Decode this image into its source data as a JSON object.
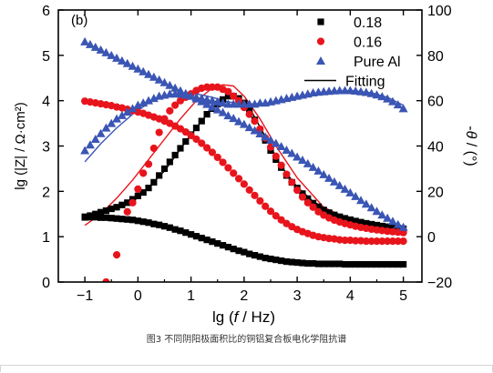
{
  "caption": "图3   不同阴阳极面积比的铜铝复合板电化学阻抗谱",
  "chart_data": {
    "type": "scatter",
    "panel_label": "(b)",
    "xlabel_parts": [
      "lg (",
      "f",
      " / Hz)"
    ],
    "ylabel_left": "lg (|Z| / Ω·cm²)",
    "ylabel_right_parts": [
      "-",
      "θ",
      " / (°)"
    ],
    "xlim": [
      -1.5,
      5.35
    ],
    "ylim_left": [
      0,
      6
    ],
    "ylim_right": [
      -20,
      100
    ],
    "xticks": [
      -1,
      0,
      1,
      2,
      3,
      4,
      5
    ],
    "yticks_left": [
      0,
      1,
      2,
      3,
      4,
      5,
      6
    ],
    "yticks_right": [
      -20,
      0,
      20,
      40,
      60,
      80,
      100
    ],
    "legend_position": "top-right",
    "legend": [
      {
        "label": "0.18",
        "marker": "square",
        "color": "#000000"
      },
      {
        "label": "0.16",
        "marker": "circle",
        "color": "#e8141c"
      },
      {
        "label": "Pure Al",
        "marker": "triangle",
        "color": "#3a55b4"
      },
      {
        "label": "Fitting",
        "marker": "line",
        "color": "#000000"
      }
    ],
    "series": [
      {
        "name": "0.18",
        "quantity": "lg|Z|",
        "axis": "left",
        "marker": "square",
        "color": "#000000",
        "x": [
          -1,
          -0.9,
          -0.8,
          -0.7,
          -0.6,
          -0.5,
          -0.4,
          -0.3,
          -0.2,
          -0.1,
          0,
          0.1,
          0.2,
          0.3,
          0.4,
          0.5,
          0.6,
          0.7,
          0.8,
          0.9,
          1,
          1.1,
          1.2,
          1.3,
          1.4,
          1.5,
          1.6,
          1.7,
          1.8,
          1.9,
          2,
          2.1,
          2.2,
          2.3,
          2.4,
          2.5,
          2.6,
          2.7,
          2.8,
          2.9,
          3,
          3.1,
          3.2,
          3.3,
          3.4,
          3.5,
          3.6,
          3.7,
          3.8,
          3.9,
          4,
          4.1,
          4.2,
          4.3,
          4.4,
          4.5,
          4.6,
          4.7,
          4.8,
          4.9,
          5
        ],
        "y": [
          1.44,
          1.43,
          1.43,
          1.42,
          1.42,
          1.41,
          1.4,
          1.39,
          1.38,
          1.37,
          1.35,
          1.33,
          1.31,
          1.28,
          1.26,
          1.23,
          1.2,
          1.16,
          1.13,
          1.09,
          1.05,
          1.01,
          0.97,
          0.93,
          0.89,
          0.85,
          0.81,
          0.77,
          0.73,
          0.69,
          0.66,
          0.62,
          0.59,
          0.56,
          0.53,
          0.51,
          0.49,
          0.47,
          0.45,
          0.44,
          0.43,
          0.42,
          0.41,
          0.41,
          0.4,
          0.4,
          0.4,
          0.4,
          0.4,
          0.39,
          0.39,
          0.39,
          0.39,
          0.39,
          0.39,
          0.39,
          0.39,
          0.39,
          0.39,
          0.39,
          0.39
        ]
      },
      {
        "name": "0.18",
        "quantity": "-θ",
        "axis": "right",
        "marker": "square",
        "color": "#000000",
        "x": [
          -1,
          -0.9,
          -0.8,
          -0.7,
          -0.6,
          -0.5,
          -0.4,
          -0.3,
          -0.2,
          -0.1,
          0,
          0.1,
          0.2,
          0.3,
          0.4,
          0.5,
          0.6,
          0.7,
          0.8,
          0.9,
          1,
          1.1,
          1.2,
          1.3,
          1.4,
          1.5,
          1.6,
          1.7,
          1.8,
          1.9,
          2,
          2.1,
          2.2,
          2.3,
          2.4,
          2.5,
          2.6,
          2.7,
          2.8,
          2.9,
          3,
          3.1,
          3.2,
          3.3,
          3.4,
          3.5,
          3.6,
          3.7,
          3.8,
          3.9,
          4,
          4.1,
          4.2,
          4.3,
          4.4,
          4.5,
          4.6,
          4.7,
          4.8,
          4.9,
          5
        ],
        "y": [
          8.5,
          9.3,
          10,
          10.8,
          11.5,
          12.3,
          13,
          14,
          15,
          16.5,
          18,
          19.5,
          21.5,
          24,
          27,
          30,
          33,
          36,
          39,
          42,
          45,
          48,
          51,
          54,
          56.5,
          58.5,
          60.5,
          62,
          62,
          61,
          59,
          55.5,
          51.5,
          47,
          42.5,
          38,
          34,
          30.5,
          27,
          24,
          21.5,
          19,
          16.8,
          14.8,
          13.2,
          11.8,
          10.6,
          9.6,
          8.8,
          8.1,
          7.5,
          6.9,
          6.4,
          5.9,
          5.5,
          5.1,
          4.7,
          4.4,
          4.1,
          3.8,
          3.5
        ]
      },
      {
        "name": "0.16",
        "quantity": "lg|Z|",
        "axis": "left",
        "marker": "circle",
        "color": "#e8141c",
        "x": [
          -1,
          -0.9,
          -0.8,
          -0.7,
          -0.6,
          -0.5,
          -0.4,
          -0.3,
          -0.2,
          -0.1,
          0,
          0.1,
          0.2,
          0.3,
          0.4,
          0.5,
          0.6,
          0.7,
          0.8,
          0.9,
          1,
          1.1,
          1.2,
          1.3,
          1.4,
          1.5,
          1.6,
          1.7,
          1.8,
          1.9,
          2,
          2.1,
          2.2,
          2.3,
          2.4,
          2.5,
          2.6,
          2.7,
          2.8,
          2.9,
          3,
          3.1,
          3.2,
          3.3,
          3.4,
          3.5,
          3.6,
          3.7,
          3.8,
          3.9,
          4,
          4.1,
          4.2,
          4.3,
          4.4,
          4.5,
          4.6,
          4.7,
          4.8,
          4.9,
          5
        ],
        "y": [
          3.99,
          3.97,
          3.95,
          3.93,
          3.91,
          3.89,
          3.86,
          3.84,
          3.81,
          3.78,
          3.75,
          3.72,
          3.68,
          3.64,
          3.6,
          3.55,
          3.5,
          3.44,
          3.38,
          3.31,
          3.23,
          3.15,
          3.06,
          2.96,
          2.86,
          2.75,
          2.64,
          2.52,
          2.4,
          2.28,
          2.16,
          2.03,
          1.91,
          1.79,
          1.67,
          1.56,
          1.46,
          1.37,
          1.29,
          1.22,
          1.16,
          1.11,
          1.07,
          1.03,
          1.0,
          0.98,
          0.96,
          0.95,
          0.93,
          0.92,
          0.92,
          0.91,
          0.91,
          0.9,
          0.9,
          0.9,
          0.9,
          0.9,
          0.9,
          0.9,
          0.9
        ]
      },
      {
        "name": "0.16",
        "quantity": "-θ",
        "axis": "right",
        "marker": "circle",
        "color": "#e8141c",
        "x": [
          -0.6,
          -0.4,
          -0.2,
          -0.1,
          0,
          0.1,
          0.2,
          0.3,
          0.4,
          0.5,
          0.6,
          0.7,
          0.8,
          0.9,
          1,
          1.1,
          1.2,
          1.3,
          1.4,
          1.5,
          1.6,
          1.7,
          1.8,
          1.9,
          2,
          2.1,
          2.2,
          2.3,
          2.4,
          2.5,
          2.6,
          2.7,
          2.8,
          2.9,
          3,
          3.1,
          3.2,
          3.3,
          3.4,
          3.5,
          3.6,
          3.7,
          3.8,
          3.9,
          4,
          4.1,
          4.2,
          4.3,
          4.4,
          4.5,
          4.6,
          4.7,
          4.8,
          4.9,
          5
        ],
        "y": [
          -20,
          -8,
          11,
          15,
          21,
          28,
          32,
          39,
          46,
          52,
          55.5,
          58,
          60,
          61.5,
          63,
          64.5,
          65.5,
          66,
          66,
          66,
          65,
          64,
          62,
          60,
          57,
          54,
          51,
          47.5,
          43.5,
          39.5,
          35.5,
          31.5,
          27.5,
          24,
          20.5,
          17.5,
          15,
          13,
          11,
          9.5,
          8.3,
          7.3,
          6.5,
          5.8,
          5.2,
          4.6,
          4.1,
          3.7,
          3.3,
          3,
          2.7,
          2.4,
          2.2,
          2,
          1.8
        ]
      },
      {
        "name": "Pure Al",
        "quantity": "lg|Z|",
        "axis": "left",
        "marker": "triangle",
        "color": "#3a55b4",
        "x": [
          -1,
          -0.9,
          -0.8,
          -0.7,
          -0.6,
          -0.5,
          -0.4,
          -0.3,
          -0.2,
          -0.1,
          0,
          0.1,
          0.2,
          0.3,
          0.4,
          0.5,
          0.6,
          0.7,
          0.8,
          0.9,
          1,
          1.1,
          1.2,
          1.3,
          1.4,
          1.5,
          1.6,
          1.7,
          1.8,
          1.9,
          2,
          2.1,
          2.2,
          2.3,
          2.4,
          2.5,
          2.6,
          2.7,
          2.8,
          2.9,
          3,
          3.1,
          3.2,
          3.3,
          3.4,
          3.5,
          3.6,
          3.7,
          3.8,
          3.9,
          4,
          4.1,
          4.2,
          4.3,
          4.4,
          4.5,
          4.6,
          4.7,
          4.8,
          4.9,
          5
        ],
        "y": [
          5.3,
          5.24,
          5.18,
          5.12,
          5.06,
          5.0,
          4.94,
          4.88,
          4.82,
          4.76,
          4.7,
          4.64,
          4.58,
          4.52,
          4.46,
          4.4,
          4.34,
          4.28,
          4.22,
          4.16,
          4.1,
          4.04,
          3.98,
          3.92,
          3.86,
          3.8,
          3.74,
          3.67,
          3.61,
          3.54,
          3.48,
          3.41,
          3.34,
          3.27,
          3.2,
          3.13,
          3.06,
          2.99,
          2.91,
          2.84,
          2.76,
          2.69,
          2.61,
          2.53,
          2.45,
          2.37,
          2.29,
          2.21,
          2.13,
          2.05,
          1.97,
          1.89,
          1.8,
          1.72,
          1.64,
          1.56,
          1.48,
          1.41,
          1.34,
          1.27,
          1.21
        ]
      },
      {
        "name": "Pure Al",
        "quantity": "-θ",
        "axis": "right",
        "marker": "triangle",
        "color": "#3a55b4",
        "x": [
          -1,
          -0.9,
          -0.8,
          -0.7,
          -0.6,
          -0.5,
          -0.4,
          -0.3,
          -0.2,
          -0.1,
          0,
          0.1,
          0.2,
          0.3,
          0.4,
          0.5,
          0.6,
          0.7,
          0.8,
          0.9,
          1,
          1.1,
          1.2,
          1.3,
          1.4,
          1.5,
          1.6,
          1.7,
          1.8,
          1.9,
          2,
          2.1,
          2.2,
          2.3,
          2.4,
          2.5,
          2.6,
          2.7,
          2.8,
          2.9,
          3,
          3.1,
          3.2,
          3.3,
          3.4,
          3.5,
          3.6,
          3.7,
          3.8,
          3.9,
          4,
          4.1,
          4.2,
          4.3,
          4.4,
          4.5,
          4.6,
          4.7,
          4.8,
          4.9,
          5
        ],
        "y": [
          38,
          40.5,
          43,
          45.5,
          48,
          50,
          52,
          53.5,
          55,
          56.5,
          58,
          59,
          60,
          61,
          62,
          62.5,
          63,
          63,
          63,
          62.5,
          62,
          61.5,
          61,
          60.5,
          60,
          59.5,
          59,
          58.5,
          58.5,
          58.5,
          58.5,
          58.5,
          58.5,
          59,
          59,
          59.5,
          60,
          60.5,
          61,
          61.5,
          62,
          62.5,
          63,
          63.5,
          63.8,
          64,
          64.2,
          64.4,
          64.5,
          64.5,
          64.5,
          64.3,
          64,
          63.7,
          63.2,
          62.6,
          61.8,
          60.8,
          59.6,
          58.2,
          56.5
        ]
      }
    ],
    "fits": [
      {
        "name": "0.18 fit",
        "axis": "right",
        "color": "#000000",
        "x": [
          -1,
          -0.5,
          0,
          0.5,
          1,
          1.3,
          1.5,
          1.7,
          1.9,
          2.1,
          2.4,
          2.7,
          3,
          3.3,
          3.6,
          4,
          4.5,
          5
        ],
        "y": [
          9,
          12,
          17,
          29,
          45,
          54,
          59,
          62,
          61.5,
          57,
          44,
          31,
          22,
          15.5,
          11.5,
          8,
          5.5,
          3.8
        ]
      },
      {
        "name": "0.16 fit",
        "axis": "right",
        "color": "#e8141c",
        "x": [
          -1,
          -0.7,
          -0.4,
          -0.1,
          0.2,
          0.5,
          0.8,
          1.1,
          1.4,
          1.6,
          1.8,
          2,
          2.3,
          2.6,
          3,
          3.5,
          4,
          4.5,
          5
        ],
        "y": [
          5,
          10,
          17,
          25,
          34,
          43,
          52,
          60,
          65.5,
          67,
          66.5,
          62,
          52,
          40,
          26,
          13,
          7.5,
          4,
          2
        ]
      },
      {
        "name": "Pure Al fit",
        "axis": "right",
        "color": "#3a55b4",
        "x": [
          -1,
          -0.7,
          -0.4,
          -0.1,
          0.2,
          0.5,
          0.8,
          1.1,
          1.4,
          1.7,
          2,
          2.4,
          2.8,
          3.2,
          3.6,
          4,
          4.4,
          4.7,
          5
        ],
        "y": [
          33,
          41,
          48,
          54,
          59,
          62,
          63.5,
          63,
          61.5,
          59.5,
          58.5,
          58.8,
          60.5,
          62.5,
          64,
          64.5,
          63.5,
          61.5,
          58
        ]
      }
    ]
  }
}
